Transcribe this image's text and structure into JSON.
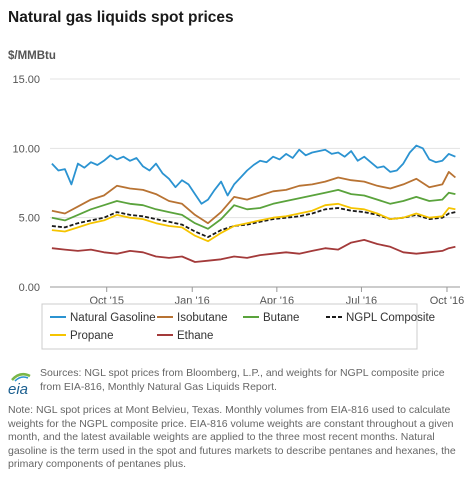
{
  "title": "Natural gas liquids spot prices",
  "unit_label": "$/MMBtu",
  "sources_text": "Sources: NGL spot prices from Bloomberg, L.P., and weights for NGPL composite price from EIA-816, Monthly Natural Gas Liquids Report.",
  "note_text": "Note: NGL spot prices at Mont Belvieu, Texas. Monthly volumes from EIA-816 used to calculate weights for the NGPL composite price. EIA-816 volume weights are constant throughout a given month, and the latest available weights are applied to the three most recent months. Natural gasoline is the term used in the spot and futures markets to describe pentanes and hexanes, the primary components of pentanes plus.",
  "logo_text": "eia",
  "chart_data": {
    "type": "line",
    "ylim": [
      0,
      15
    ],
    "yticks": [
      "0.00",
      "5.00",
      "10.00",
      "15.00"
    ],
    "ytick_values": [
      0,
      5,
      10,
      15
    ],
    "xlim": [
      "2015-08-01",
      "2016-10-15"
    ],
    "xticks": [
      {
        "label": "Oct '15",
        "date": "2015-10-01"
      },
      {
        "label": "Jan '16",
        "date": "2016-01-01"
      },
      {
        "label": "Apr '16",
        "date": "2016-04-01"
      },
      {
        "label": "Jul '16",
        "date": "2016-07-01"
      },
      {
        "label": "Oct '16",
        "date": "2016-10-01"
      }
    ],
    "grid": "horizontal",
    "legend_position": "bottom",
    "series": [
      {
        "name": "Natural Gasoline",
        "color": "#2b93d1",
        "dash": "",
        "x": [
          "2015-08-03",
          "2015-08-10",
          "2015-08-17",
          "2015-08-24",
          "2015-08-31",
          "2015-09-07",
          "2015-09-14",
          "2015-09-21",
          "2015-09-28",
          "2015-10-05",
          "2015-10-12",
          "2015-10-19",
          "2015-10-26",
          "2015-11-02",
          "2015-11-09",
          "2015-11-16",
          "2015-11-23",
          "2015-11-30",
          "2015-12-07",
          "2015-12-14",
          "2015-12-21",
          "2015-12-28",
          "2016-01-04",
          "2016-01-11",
          "2016-01-18",
          "2016-01-25",
          "2016-02-01",
          "2016-02-08",
          "2016-02-15",
          "2016-02-22",
          "2016-02-29",
          "2016-03-07",
          "2016-03-14",
          "2016-03-21",
          "2016-03-28",
          "2016-04-04",
          "2016-04-11",
          "2016-04-18",
          "2016-04-25",
          "2016-05-02",
          "2016-05-09",
          "2016-05-16",
          "2016-05-23",
          "2016-05-30",
          "2016-06-06",
          "2016-06-13",
          "2016-06-20",
          "2016-06-27",
          "2016-07-04",
          "2016-07-11",
          "2016-07-18",
          "2016-07-25",
          "2016-08-01",
          "2016-08-08",
          "2016-08-15",
          "2016-08-22",
          "2016-08-29",
          "2016-09-05",
          "2016-09-12",
          "2016-09-19",
          "2016-09-26",
          "2016-10-03",
          "2016-10-10"
        ],
        "y": [
          8.9,
          8.4,
          8.5,
          7.4,
          8.9,
          8.6,
          9.0,
          8.8,
          9.1,
          9.5,
          9.2,
          9.4,
          9.1,
          9.3,
          8.7,
          8.4,
          8.9,
          8.2,
          7.8,
          7.2,
          7.7,
          7.4,
          6.7,
          6.0,
          6.3,
          7.0,
          7.6,
          6.6,
          7.4,
          7.9,
          8.4,
          8.8,
          9.1,
          9.0,
          9.4,
          9.2,
          9.6,
          9.3,
          9.9,
          9.5,
          9.7,
          9.8,
          9.9,
          9.6,
          9.7,
          9.4,
          9.8,
          9.1,
          9.4,
          9.0,
          8.6,
          8.7,
          8.3,
          8.4,
          8.9,
          9.7,
          10.2,
          10.0,
          9.2,
          9.0,
          9.1,
          9.6,
          9.4
        ]
      },
      {
        "name": "Isobutane",
        "color": "#b87333",
        "dash": "",
        "x": [
          "2015-08-03",
          "2015-08-17",
          "2015-08-31",
          "2015-09-14",
          "2015-09-28",
          "2015-10-12",
          "2015-10-26",
          "2015-11-09",
          "2015-11-23",
          "2015-12-07",
          "2015-12-21",
          "2016-01-04",
          "2016-01-18",
          "2016-02-01",
          "2016-02-15",
          "2016-02-29",
          "2016-03-14",
          "2016-03-28",
          "2016-04-11",
          "2016-04-25",
          "2016-05-09",
          "2016-05-23",
          "2016-06-06",
          "2016-06-20",
          "2016-07-04",
          "2016-07-18",
          "2016-08-01",
          "2016-08-15",
          "2016-08-29",
          "2016-09-12",
          "2016-09-26",
          "2016-10-03",
          "2016-10-10"
        ],
        "y": [
          5.5,
          5.3,
          5.8,
          6.3,
          6.6,
          7.3,
          7.1,
          7.0,
          6.7,
          6.2,
          6.0,
          5.2,
          4.6,
          5.4,
          6.5,
          6.3,
          6.6,
          6.9,
          7.0,
          7.3,
          7.4,
          7.6,
          7.9,
          7.7,
          7.6,
          7.3,
          7.1,
          7.4,
          7.8,
          7.2,
          7.4,
          8.3,
          7.9
        ]
      },
      {
        "name": "Butane",
        "color": "#5aa33c",
        "dash": "",
        "x": [
          "2015-08-03",
          "2015-08-17",
          "2015-08-31",
          "2015-09-14",
          "2015-09-28",
          "2015-10-12",
          "2015-10-26",
          "2015-11-09",
          "2015-11-23",
          "2015-12-07",
          "2015-12-21",
          "2016-01-04",
          "2016-01-18",
          "2016-02-01",
          "2016-02-15",
          "2016-02-29",
          "2016-03-14",
          "2016-03-28",
          "2016-04-11",
          "2016-04-25",
          "2016-05-09",
          "2016-05-23",
          "2016-06-06",
          "2016-06-20",
          "2016-07-04",
          "2016-07-18",
          "2016-08-01",
          "2016-08-15",
          "2016-08-29",
          "2016-09-12",
          "2016-09-26",
          "2016-10-03",
          "2016-10-10"
        ],
        "y": [
          5.0,
          4.8,
          5.2,
          5.6,
          5.9,
          6.2,
          6.0,
          5.9,
          5.6,
          5.4,
          5.2,
          4.6,
          4.2,
          4.9,
          5.9,
          5.6,
          5.7,
          6.0,
          6.2,
          6.4,
          6.6,
          6.8,
          7.0,
          6.7,
          6.6,
          6.3,
          6.0,
          6.2,
          6.5,
          6.2,
          6.3,
          6.8,
          6.7
        ]
      },
      {
        "name": "NGPL Composite",
        "color": "#1a1a1a",
        "dash": "4,2",
        "x": [
          "2015-08-03",
          "2015-08-17",
          "2015-08-31",
          "2015-09-14",
          "2015-09-28",
          "2015-10-12",
          "2015-10-26",
          "2015-11-09",
          "2015-11-23",
          "2015-12-07",
          "2015-12-21",
          "2016-01-04",
          "2016-01-18",
          "2016-02-01",
          "2016-02-15",
          "2016-02-29",
          "2016-03-14",
          "2016-03-28",
          "2016-04-11",
          "2016-04-25",
          "2016-05-09",
          "2016-05-23",
          "2016-06-06",
          "2016-06-20",
          "2016-07-04",
          "2016-07-18",
          "2016-08-01",
          "2016-08-15",
          "2016-08-29",
          "2016-09-12",
          "2016-09-26",
          "2016-10-03",
          "2016-10-10"
        ],
        "y": [
          4.4,
          4.3,
          4.6,
          4.8,
          5.0,
          5.4,
          5.2,
          5.1,
          4.9,
          4.7,
          4.5,
          4.0,
          3.6,
          4.1,
          4.4,
          4.5,
          4.7,
          4.9,
          5.0,
          5.1,
          5.3,
          5.6,
          5.7,
          5.5,
          5.4,
          5.2,
          4.9,
          5.0,
          5.2,
          4.9,
          5.0,
          5.3,
          5.4
        ]
      },
      {
        "name": "Propane",
        "color": "#f5c400",
        "dash": "",
        "x": [
          "2015-08-03",
          "2015-08-17",
          "2015-08-31",
          "2015-09-14",
          "2015-09-28",
          "2015-10-12",
          "2015-10-26",
          "2015-11-09",
          "2015-11-23",
          "2015-12-07",
          "2015-12-21",
          "2016-01-04",
          "2016-01-18",
          "2016-02-01",
          "2016-02-15",
          "2016-02-29",
          "2016-03-14",
          "2016-03-28",
          "2016-04-11",
          "2016-04-25",
          "2016-05-09",
          "2016-05-23",
          "2016-06-06",
          "2016-06-20",
          "2016-07-04",
          "2016-07-18",
          "2016-08-01",
          "2016-08-15",
          "2016-08-29",
          "2016-09-12",
          "2016-09-26",
          "2016-10-03",
          "2016-10-10"
        ],
        "y": [
          4.1,
          4.0,
          4.3,
          4.6,
          4.8,
          5.2,
          5.0,
          4.9,
          4.6,
          4.4,
          4.3,
          3.7,
          3.3,
          3.9,
          4.4,
          4.6,
          4.8,
          5.0,
          5.1,
          5.3,
          5.5,
          5.9,
          6.0,
          5.7,
          5.6,
          5.3,
          4.9,
          5.0,
          5.3,
          5.0,
          5.1,
          5.7,
          5.6
        ]
      },
      {
        "name": "Ethane",
        "color": "#a33a3a",
        "dash": "",
        "x": [
          "2015-08-03",
          "2015-08-17",
          "2015-08-31",
          "2015-09-14",
          "2015-09-28",
          "2015-10-12",
          "2015-10-26",
          "2015-11-09",
          "2015-11-23",
          "2015-12-07",
          "2015-12-21",
          "2016-01-04",
          "2016-01-18",
          "2016-02-01",
          "2016-02-15",
          "2016-02-29",
          "2016-03-14",
          "2016-03-28",
          "2016-04-11",
          "2016-04-25",
          "2016-05-09",
          "2016-05-23",
          "2016-06-06",
          "2016-06-20",
          "2016-07-04",
          "2016-07-18",
          "2016-08-01",
          "2016-08-15",
          "2016-08-29",
          "2016-09-12",
          "2016-09-26",
          "2016-10-03",
          "2016-10-10"
        ],
        "y": [
          2.8,
          2.7,
          2.6,
          2.7,
          2.5,
          2.4,
          2.6,
          2.5,
          2.2,
          2.1,
          2.2,
          1.8,
          1.9,
          2.0,
          2.2,
          2.1,
          2.3,
          2.4,
          2.5,
          2.4,
          2.6,
          2.8,
          2.7,
          3.2,
          3.4,
          3.1,
          2.9,
          2.5,
          2.4,
          2.5,
          2.6,
          2.8,
          2.9
        ]
      }
    ]
  }
}
